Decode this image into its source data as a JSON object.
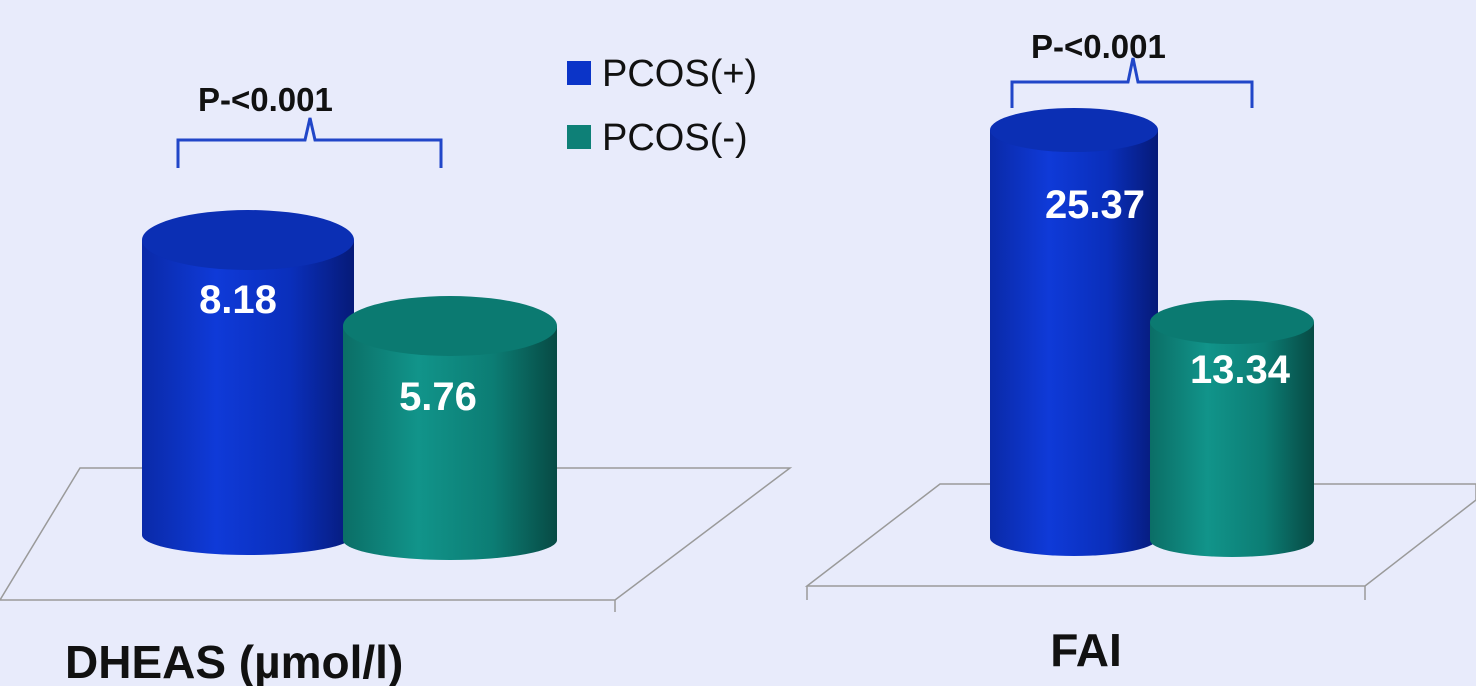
{
  "legend": {
    "items": [
      {
        "label": "PCOS(+)",
        "color": "#0b34c8"
      },
      {
        "label": "PCOS(-)",
        "color": "#0e8077"
      }
    ]
  },
  "chart_data": [
    {
      "type": "bar",
      "style": "3d-cylinder",
      "xlabel": "DHEAS (µmol/l)",
      "annotation": "P-<0.001",
      "series": [
        {
          "name": "PCOS(+)",
          "values": [
            8.18
          ]
        },
        {
          "name": "PCOS(-)",
          "values": [
            5.76
          ]
        }
      ],
      "data_labels": [
        "8.18",
        "5.76"
      ]
    },
    {
      "type": "bar",
      "style": "3d-cylinder",
      "xlabel": "FAI",
      "annotation": "P-<0.001",
      "series": [
        {
          "name": "PCOS(+)",
          "values": [
            25.37
          ]
        },
        {
          "name": "PCOS(-)",
          "values": [
            13.34
          ]
        }
      ],
      "data_labels": [
        "25.37",
        "13.34"
      ]
    }
  ],
  "colors": {
    "background": "#e8ebfb",
    "pcos_pos": "#0b34c8",
    "pcos_neg": "#0e8077",
    "bracket": "#2146c8",
    "floor_line": "#9a9a9a"
  }
}
